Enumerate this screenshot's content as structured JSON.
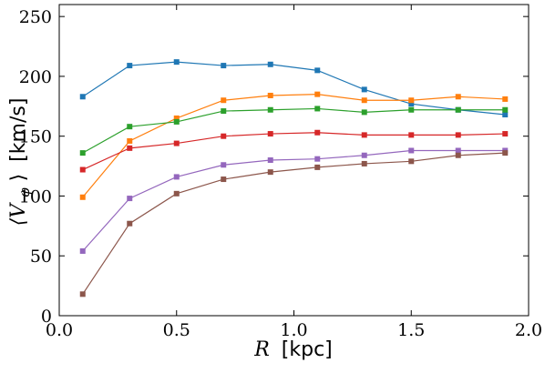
{
  "chart_data": {
    "type": "line",
    "title": "",
    "xlabel": {
      "symbol": "R",
      "unit": "[kpc]"
    },
    "ylabel": {
      "symbol": "⟨V",
      "subscript": "φ",
      "close": "⟩",
      "unit": "[km/s]"
    },
    "xlim": [
      0.0,
      2.0
    ],
    "ylim": [
      0,
      260
    ],
    "xticks": [
      0.0,
      0.5,
      1.0,
      1.5,
      2.0
    ],
    "xtick_labels": [
      "0.0",
      "0.5",
      "1.0",
      "1.5",
      "2.0"
    ],
    "yticks": [
      0,
      50,
      100,
      150,
      200,
      250
    ],
    "ytick_labels": [
      "0",
      "50",
      "100",
      "150",
      "200",
      "250"
    ],
    "grid": false,
    "legend": "none",
    "marker": "square",
    "x": [
      0.1,
      0.3,
      0.5,
      0.7,
      0.9,
      1.1,
      1.3,
      1.5,
      1.7,
      1.9
    ],
    "series": [
      {
        "color": "#1f77b4",
        "values": [
          183,
          209,
          212,
          209,
          210,
          205,
          189,
          177,
          172,
          168
        ]
      },
      {
        "color": "#ff7f0e",
        "values": [
          99,
          146,
          165,
          180,
          184,
          185,
          180,
          180,
          183,
          181
        ]
      },
      {
        "color": "#2ca02c",
        "values": [
          136,
          158,
          162,
          171,
          172,
          173,
          170,
          172,
          172,
          172
        ]
      },
      {
        "color": "#d62728",
        "values": [
          122,
          140,
          144,
          150,
          152,
          153,
          151,
          151,
          151,
          152
        ]
      },
      {
        "color": "#9467bd",
        "values": [
          54,
          98,
          116,
          126,
          130,
          131,
          134,
          138,
          138,
          138
        ]
      },
      {
        "color": "#8c564b",
        "values": [
          18,
          77,
          102,
          114,
          120,
          124,
          127,
          129,
          134,
          136
        ]
      }
    ]
  }
}
